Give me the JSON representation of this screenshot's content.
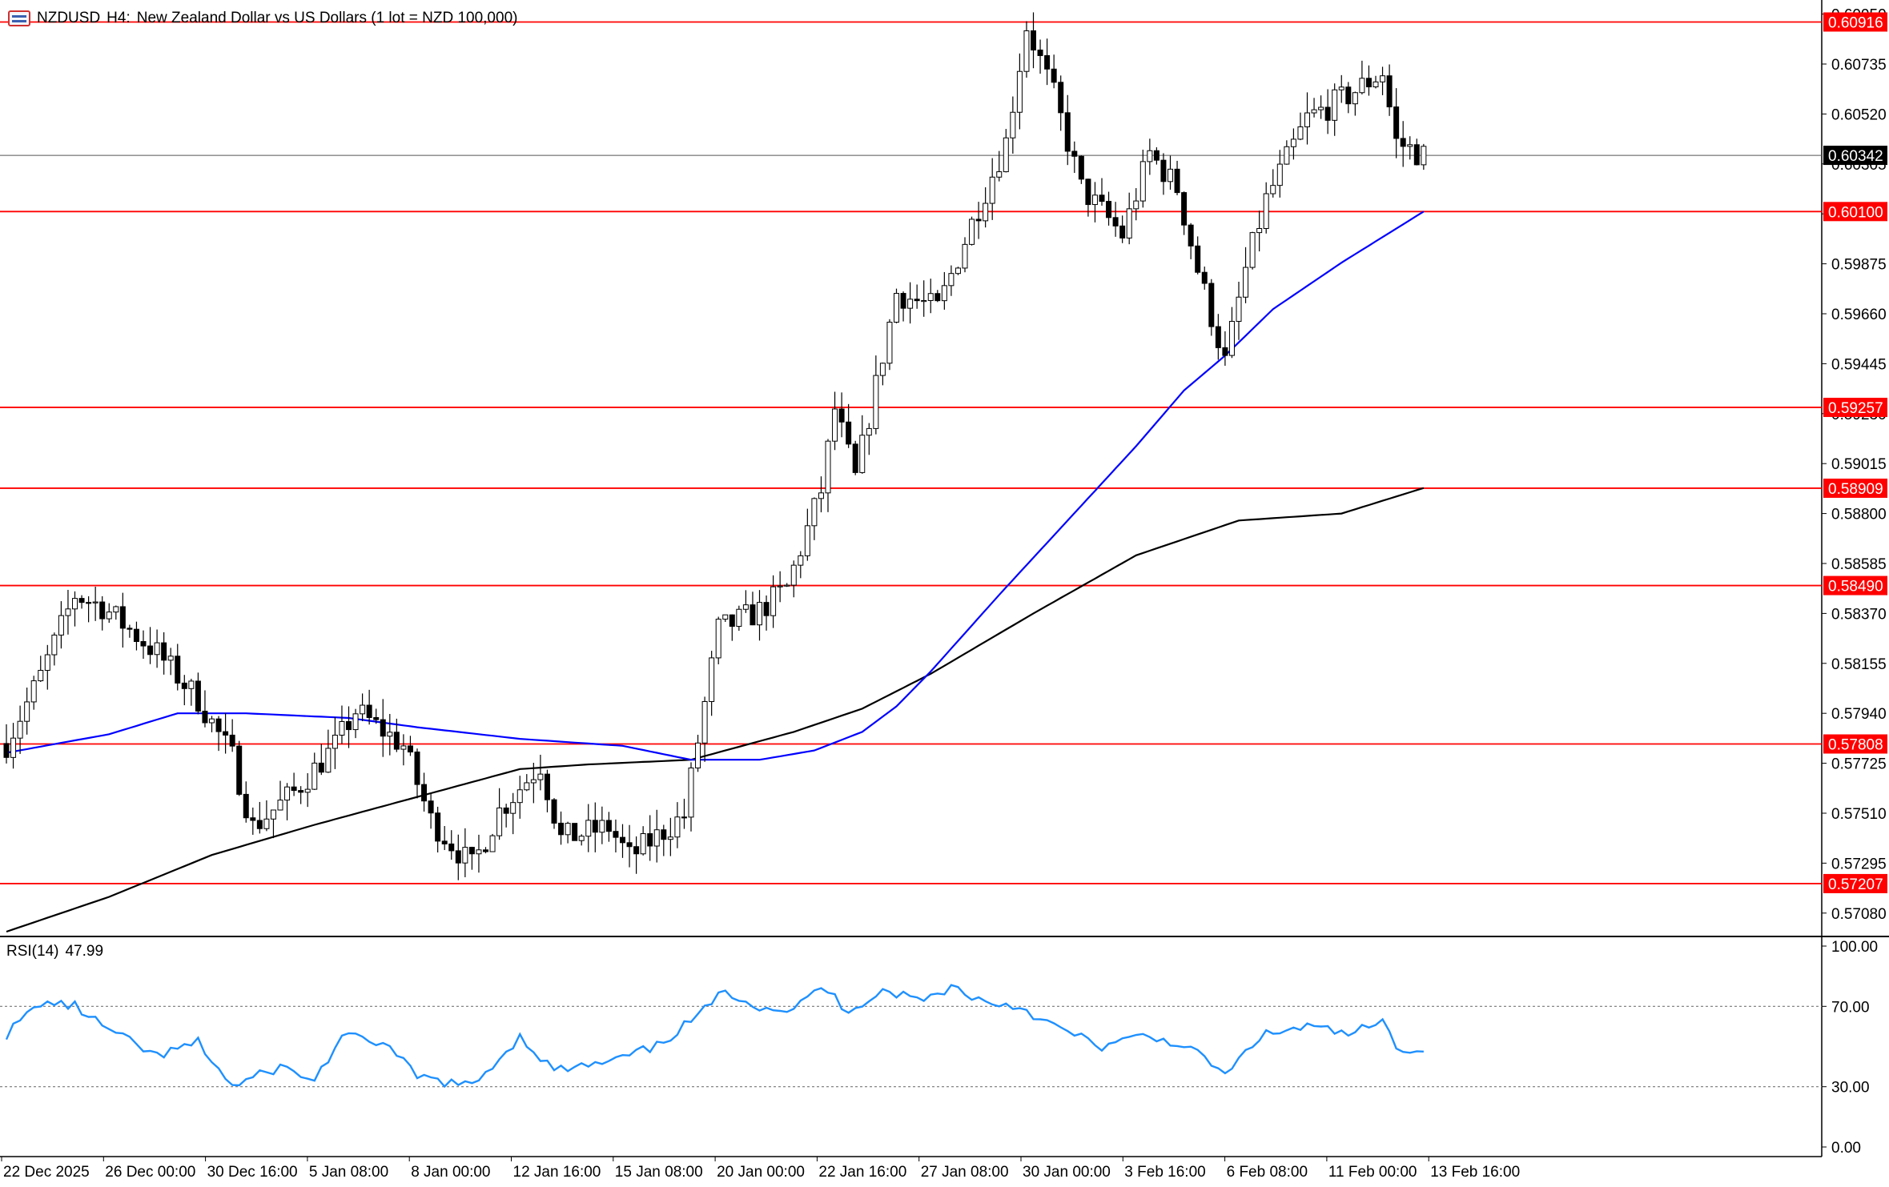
{
  "header": {
    "symbol": "NZDUSD",
    "timeframe": "H4:",
    "description": "New Zealand Dollar vs US Dollars (1 lot = NZD 100,000)",
    "icon": "chart-window-icon"
  },
  "rsi": {
    "label": "RSI(14)",
    "value": "47.99",
    "levels": [
      "100.00",
      "70.00",
      "30.00",
      "0.00"
    ],
    "color": "#1e90ff"
  },
  "price_axis": {
    "ticks": [
      "0.60950",
      "0.60735",
      "0.60520",
      "0.60305",
      "0.60090",
      "0.59875",
      "0.59660",
      "0.59445",
      "0.59230",
      "0.59015",
      "0.58800",
      "0.58585",
      "0.58370",
      "0.58155",
      "0.57940",
      "0.57725",
      "0.57510",
      "0.57295",
      "0.57080"
    ],
    "current_price": "0.60342"
  },
  "horizontal_levels": {
    "color": "#ff0000",
    "values": [
      "0.60916",
      "0.60100",
      "0.59257",
      "0.58909",
      "0.58490",
      "0.57808",
      "0.57207"
    ]
  },
  "time_axis": {
    "labels": [
      "22 Dec 2025",
      "26 Dec 00:00",
      "30 Dec 16:00",
      "5 Jan 08:00",
      "8 Jan 00:00",
      "12 Jan 16:00",
      "15 Jan 08:00",
      "20 Jan 00:00",
      "22 Jan 16:00",
      "27 Jan 08:00",
      "30 Jan 00:00",
      "3 Feb 16:00",
      "6 Feb 08:00",
      "11 Feb 00:00",
      "13 Feb 16:00"
    ]
  },
  "chart_data": {
    "type": "candlestick",
    "symbol": "NZDUSD",
    "timeframe": "H4",
    "ylim": [
      0.57,
      0.6099
    ],
    "rsi_ylim": [
      0,
      100
    ],
    "candle_count": 208,
    "anchors": [
      {
        "bar": 0,
        "price": 0.5781
      },
      {
        "bar": 5,
        "price": 0.581
      },
      {
        "bar": 10,
        "price": 0.5845
      },
      {
        "bar": 14,
        "price": 0.584
      },
      {
        "bar": 22,
        "price": 0.582
      },
      {
        "bar": 28,
        "price": 0.58
      },
      {
        "bar": 33,
        "price": 0.5775
      },
      {
        "bar": 36,
        "price": 0.5745
      },
      {
        "bar": 42,
        "price": 0.576
      },
      {
        "bar": 48,
        "price": 0.578
      },
      {
        "bar": 51,
        "price": 0.5795
      },
      {
        "bar": 58,
        "price": 0.578
      },
      {
        "bar": 62,
        "price": 0.5748
      },
      {
        "bar": 68,
        "price": 0.5728
      },
      {
        "bar": 72,
        "price": 0.5752
      },
      {
        "bar": 78,
        "price": 0.5772
      },
      {
        "bar": 81,
        "price": 0.574
      },
      {
        "bar": 88,
        "price": 0.5745
      },
      {
        "bar": 91,
        "price": 0.5732
      },
      {
        "bar": 99,
        "price": 0.575
      },
      {
        "bar": 104,
        "price": 0.583
      },
      {
        "bar": 110,
        "price": 0.5838
      },
      {
        "bar": 114,
        "price": 0.5848
      },
      {
        "bar": 119,
        "price": 0.589
      },
      {
        "bar": 121,
        "price": 0.5925
      },
      {
        "bar": 124,
        "price": 0.5895
      },
      {
        "bar": 130,
        "price": 0.5975
      },
      {
        "bar": 136,
        "price": 0.5968
      },
      {
        "bar": 141,
        "price": 0.6005
      },
      {
        "bar": 146,
        "price": 0.604
      },
      {
        "bar": 149,
        "price": 0.609
      },
      {
        "bar": 153,
        "price": 0.606
      },
      {
        "bar": 157,
        "price": 0.602
      },
      {
        "bar": 163,
        "price": 0.6
      },
      {
        "bar": 167,
        "price": 0.6035
      },
      {
        "bar": 171,
        "price": 0.602
      },
      {
        "bar": 174,
        "price": 0.5985
      },
      {
        "bar": 178,
        "price": 0.5945
      },
      {
        "bar": 181,
        "price": 0.5985
      },
      {
        "bar": 184,
        "price": 0.6015
      },
      {
        "bar": 190,
        "price": 0.605
      },
      {
        "bar": 196,
        "price": 0.606
      },
      {
        "bar": 201,
        "price": 0.607
      },
      {
        "bar": 203,
        "price": 0.604
      },
      {
        "bar": 207,
        "price": 0.6034
      }
    ],
    "sma_fast": {
      "color": "#0000ff",
      "points": [
        {
          "bar": 0,
          "value": 0.5777
        },
        {
          "bar": 15,
          "value": 0.5785
        },
        {
          "bar": 25,
          "value": 0.5794
        },
        {
          "bar": 35,
          "value": 0.5794
        },
        {
          "bar": 50,
          "value": 0.5792
        },
        {
          "bar": 60,
          "value": 0.5788
        },
        {
          "bar": 75,
          "value": 0.5783
        },
        {
          "bar": 90,
          "value": 0.578
        },
        {
          "bar": 100,
          "value": 0.5774
        },
        {
          "bar": 110,
          "value": 0.5774
        },
        {
          "bar": 118,
          "value": 0.5778
        },
        {
          "bar": 125,
          "value": 0.5786
        },
        {
          "bar": 130,
          "value": 0.5797
        },
        {
          "bar": 135,
          "value": 0.5812
        },
        {
          "bar": 145,
          "value": 0.5845
        },
        {
          "bar": 155,
          "value": 0.5877
        },
        {
          "bar": 165,
          "value": 0.5909
        },
        {
          "bar": 172,
          "value": 0.5933
        },
        {
          "bar": 178,
          "value": 0.5948
        },
        {
          "bar": 185,
          "value": 0.5968
        },
        {
          "bar": 195,
          "value": 0.5988
        },
        {
          "bar": 207,
          "value": 0.601
        }
      ]
    },
    "sma_slow": {
      "color": "#000000",
      "points": [
        {
          "bar": 0,
          "value": 0.57
        },
        {
          "bar": 15,
          "value": 0.5715
        },
        {
          "bar": 30,
          "value": 0.5733
        },
        {
          "bar": 45,
          "value": 0.5746
        },
        {
          "bar": 60,
          "value": 0.5758
        },
        {
          "bar": 75,
          "value": 0.577
        },
        {
          "bar": 85,
          "value": 0.5772
        },
        {
          "bar": 100,
          "value": 0.5774
        },
        {
          "bar": 115,
          "value": 0.5786
        },
        {
          "bar": 125,
          "value": 0.5796
        },
        {
          "bar": 135,
          "value": 0.5811
        },
        {
          "bar": 150,
          "value": 0.5837
        },
        {
          "bar": 165,
          "value": 0.5862
        },
        {
          "bar": 180,
          "value": 0.5877
        },
        {
          "bar": 195,
          "value": 0.588
        },
        {
          "bar": 207,
          "value": 0.5891
        }
      ]
    },
    "rsi_points": [
      {
        "bar": 0,
        "value": 56
      },
      {
        "bar": 5,
        "value": 72
      },
      {
        "bar": 10,
        "value": 70
      },
      {
        "bar": 15,
        "value": 58
      },
      {
        "bar": 22,
        "value": 45
      },
      {
        "bar": 28,
        "value": 52
      },
      {
        "bar": 33,
        "value": 30
      },
      {
        "bar": 40,
        "value": 40
      },
      {
        "bar": 45,
        "value": 33
      },
      {
        "bar": 49,
        "value": 55
      },
      {
        "bar": 55,
        "value": 52
      },
      {
        "bar": 60,
        "value": 35
      },
      {
        "bar": 68,
        "value": 30
      },
      {
        "bar": 75,
        "value": 55
      },
      {
        "bar": 80,
        "value": 38
      },
      {
        "bar": 88,
        "value": 42
      },
      {
        "bar": 95,
        "value": 50
      },
      {
        "bar": 102,
        "value": 68
      },
      {
        "bar": 105,
        "value": 78
      },
      {
        "bar": 110,
        "value": 70
      },
      {
        "bar": 115,
        "value": 68
      },
      {
        "bar": 119,
        "value": 80
      },
      {
        "bar": 123,
        "value": 68
      },
      {
        "bar": 128,
        "value": 78
      },
      {
        "bar": 134,
        "value": 73
      },
      {
        "bar": 138,
        "value": 80
      },
      {
        "bar": 143,
        "value": 72
      },
      {
        "bar": 148,
        "value": 70
      },
      {
        "bar": 153,
        "value": 60
      },
      {
        "bar": 160,
        "value": 50
      },
      {
        "bar": 166,
        "value": 55
      },
      {
        "bar": 171,
        "value": 52
      },
      {
        "bar": 176,
        "value": 42
      },
      {
        "bar": 178,
        "value": 35
      },
      {
        "bar": 183,
        "value": 55
      },
      {
        "bar": 190,
        "value": 60
      },
      {
        "bar": 196,
        "value": 56
      },
      {
        "bar": 201,
        "value": 62
      },
      {
        "bar": 203,
        "value": 50
      },
      {
        "bar": 207,
        "value": 48
      }
    ]
  }
}
